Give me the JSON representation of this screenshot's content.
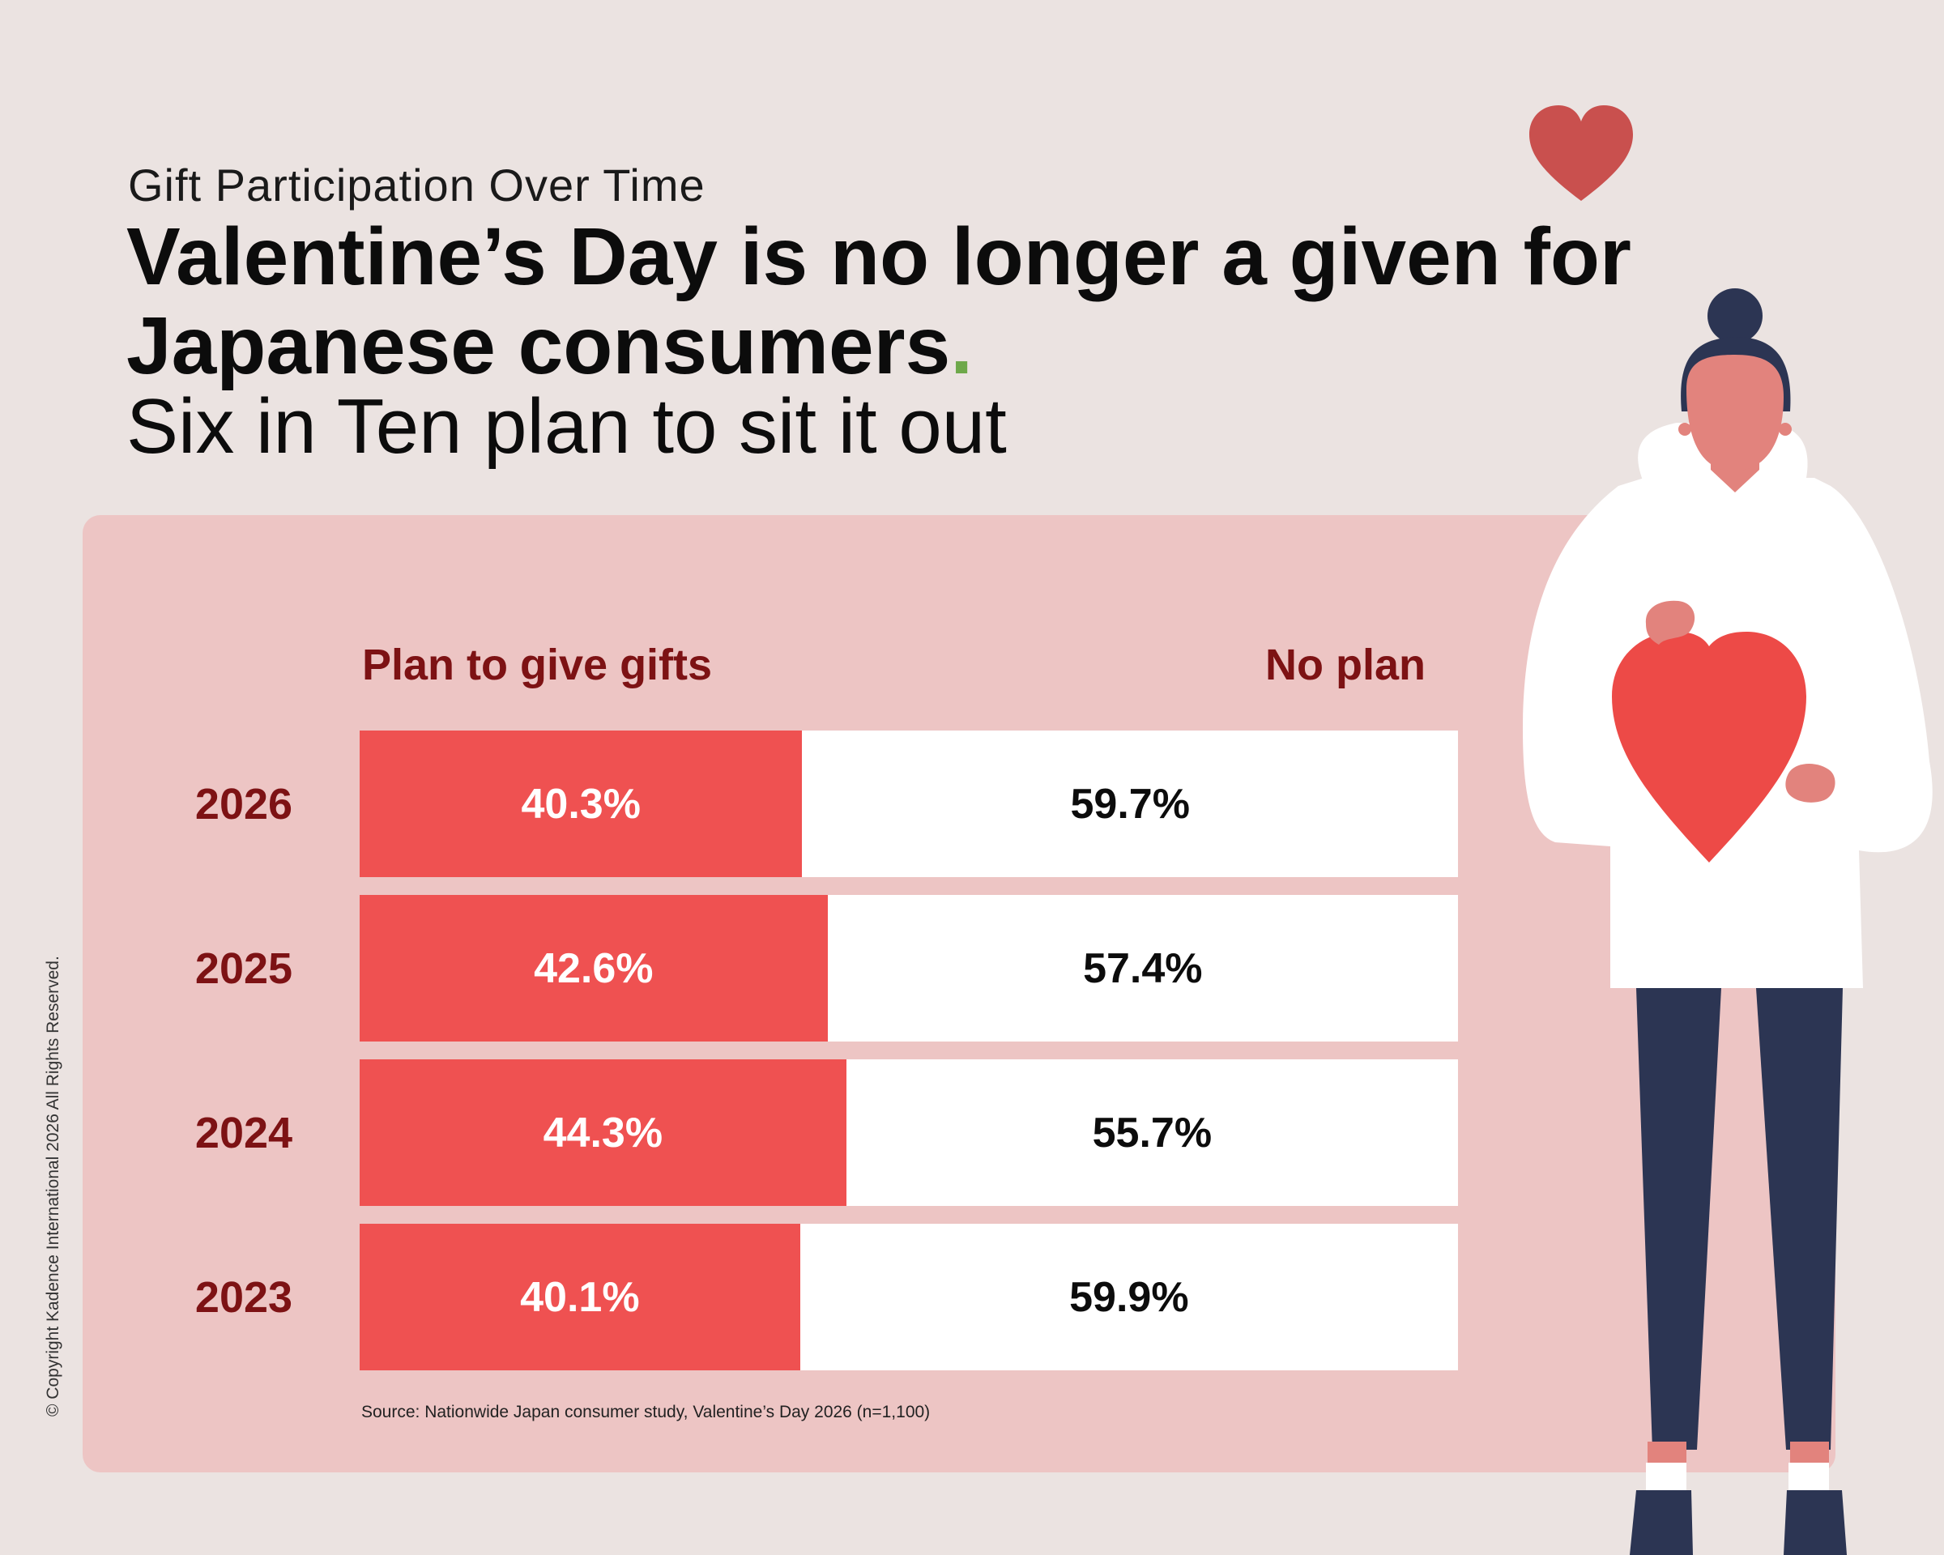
{
  "eyebrow": "Gift Participation Over Time",
  "headline": {
    "text": "Valentine’s Day is no longer a given for Japanese consumers",
    "end_dot": "."
  },
  "subhead": "Six in Ten plan to sit it out",
  "colors": {
    "plan": "#ef5151",
    "no_plan": "#ffffff",
    "label": "#7d1214",
    "panel": "#edc5c4",
    "background": "#ebe3e1",
    "accent_dot": "#6ea84a"
  },
  "chart_data": {
    "type": "bar",
    "orientation": "horizontal",
    "stacked": true,
    "normalized_to": 100,
    "categories": [
      "2026",
      "2025",
      "2024",
      "2023"
    ],
    "series": [
      {
        "name": "Plan to give gifts",
        "values": [
          40.3,
          42.6,
          44.3,
          40.1
        ],
        "labels": [
          "40.3%",
          "42.6%",
          "44.3%",
          "40.1%"
        ]
      },
      {
        "name": "No plan",
        "values": [
          59.7,
          57.4,
          55.7,
          59.9
        ],
        "labels": [
          "59.7%",
          "57.4%",
          "55.7%",
          "59.9%"
        ]
      }
    ],
    "xlim": [
      0,
      100
    ],
    "grid": false,
    "legend": "top"
  },
  "source": "Source: Nationwide Japan consumer study, Valentine’s Day 2026 (n=1,100)",
  "copyright": "© Copyright Kadence International 2026 All Rights Reserved."
}
